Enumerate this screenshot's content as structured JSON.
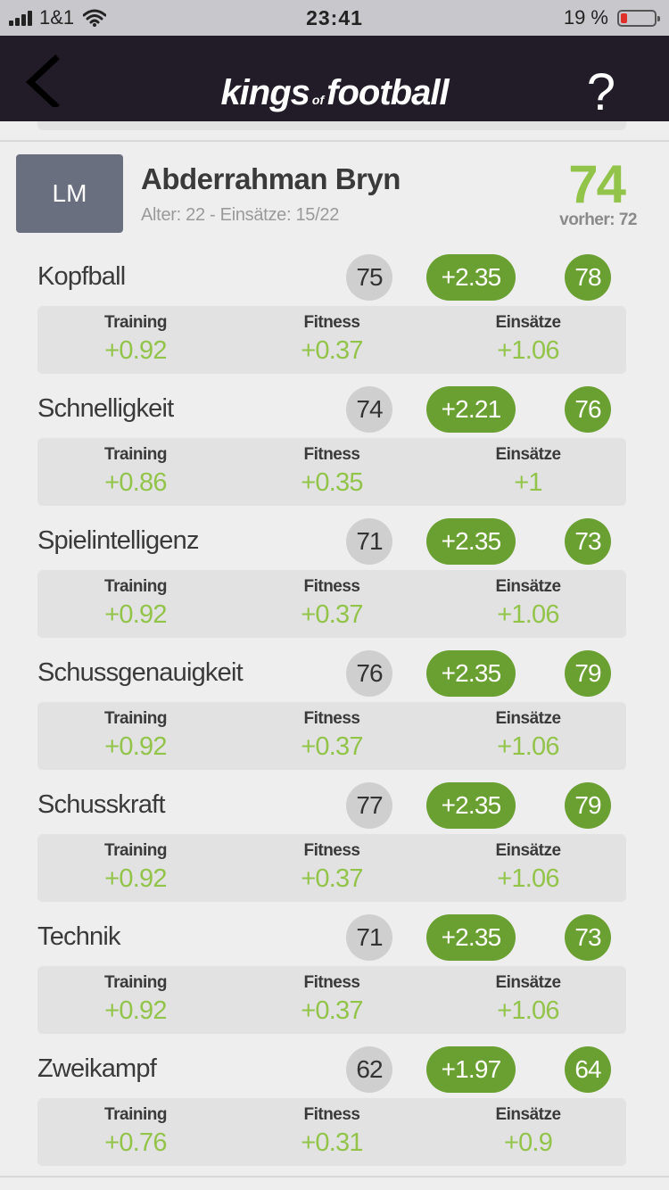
{
  "status_bar": {
    "carrier": "1&1",
    "time": "23:41",
    "battery": "19 %"
  },
  "nav": {
    "logo_word1": "kings",
    "logo_word2": "of",
    "logo_word3": "football",
    "help": "?"
  },
  "player": {
    "position": "LM",
    "name": "Abderrahman Bryn",
    "meta": "Alter: 22 - Einsätze: 15/22",
    "overall": "74",
    "previous": "vorher: 72"
  },
  "labels": {
    "training": "Training",
    "fitness": "Fitness",
    "einsaetze": "Einsätze"
  },
  "stats": [
    {
      "name": "Kopfball",
      "current": "75",
      "delta": "+2.35",
      "new": "78",
      "training": "+0.92",
      "fitness": "+0.37",
      "einsaetze": "+1.06"
    },
    {
      "name": "Schnelligkeit",
      "current": "74",
      "delta": "+2.21",
      "new": "76",
      "training": "+0.86",
      "fitness": "+0.35",
      "einsaetze": "+1"
    },
    {
      "name": "Spielintelligenz",
      "current": "71",
      "delta": "+2.35",
      "new": "73",
      "training": "+0.92",
      "fitness": "+0.37",
      "einsaetze": "+1.06"
    },
    {
      "name": "Schussgenauigkeit",
      "current": "76",
      "delta": "+2.35",
      "new": "79",
      "training": "+0.92",
      "fitness": "+0.37",
      "einsaetze": "+1.06"
    },
    {
      "name": "Schusskraft",
      "current": "77",
      "delta": "+2.35",
      "new": "79",
      "training": "+0.92",
      "fitness": "+0.37",
      "einsaetze": "+1.06"
    },
    {
      "name": "Technik",
      "current": "71",
      "delta": "+2.35",
      "new": "73",
      "training": "+0.92",
      "fitness": "+0.37",
      "einsaetze": "+1.06"
    },
    {
      "name": "Zweikampf",
      "current": "62",
      "delta": "+1.97",
      "new": "64",
      "training": "+0.76",
      "fitness": "+0.31",
      "einsaetze": "+0.9"
    }
  ]
}
